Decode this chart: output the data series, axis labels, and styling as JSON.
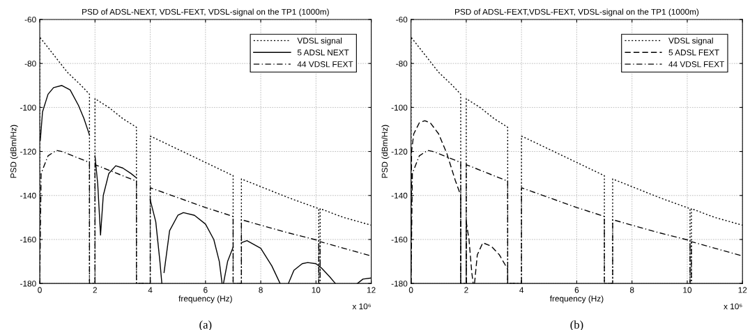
{
  "chart_data": [
    {
      "type": "line",
      "title": "PSD of ADSL-NEXT, VDSL-FEXT, VDSL-signal on the TP1 (1000m)",
      "xlabel": "frequency (Hz)",
      "ylabel": "PSD (dBm/Hz)",
      "annotations": [
        "x 10⁶",
        "(a)"
      ],
      "xlim": [
        0,
        12
      ],
      "xticks": [
        0,
        2,
        4,
        6,
        8,
        10,
        12
      ],
      "ylim": [
        -180,
        -60
      ],
      "yticks": [
        -180,
        -160,
        -140,
        -120,
        -100,
        -80,
        -60
      ],
      "grid": true,
      "legend": "top right",
      "series": [
        {
          "name": "VDSL signal",
          "color": "#000000",
          "line_style": "dotted",
          "x": [
            0,
            0,
            0.5,
            1.0,
            1.5,
            1.8,
            1.8,
            2.0,
            2.0,
            2.5,
            3.0,
            3.5,
            3.5,
            4.0,
            4.0,
            5.0,
            6.0,
            7.0,
            7.0,
            7.3,
            7.3,
            8.0,
            9.0,
            10.1,
            10.1,
            10.15,
            10.15,
            11.0,
            12.0
          ],
          "values": [
            -180,
            -68,
            -76,
            -84,
            -90,
            -94,
            -180,
            -180,
            -96,
            -100,
            -105,
            -109,
            -180,
            -180,
            -113,
            -119,
            -125,
            -131,
            -180,
            -180,
            -132.5,
            -136,
            -141,
            -146,
            -180,
            -180,
            -146,
            -150,
            -153.5
          ]
        },
        {
          "name": "5 ADSL NEXT",
          "color": "#000000",
          "line_style": "solid",
          "x": [
            0.02,
            0.1,
            0.3,
            0.5,
            0.8,
            1.1,
            1.4,
            1.6,
            1.8,
            1.9,
            2.0,
            2.1,
            2.2,
            2.3,
            2.5,
            2.75,
            3.0,
            3.3,
            3.5,
            3.75,
            4.0,
            4.2,
            4.35,
            4.42,
            4.46,
            4.5,
            4.7,
            5.0,
            5.2,
            5.6,
            6.0,
            6.3,
            6.5,
            6.6,
            6.62,
            6.65,
            6.8,
            7.0,
            7.15,
            7.3,
            7.5,
            8.0,
            8.4,
            8.7,
            8.85,
            9.0,
            9.2,
            9.5,
            9.7,
            10.0,
            10.2,
            10.5,
            10.7,
            11.1,
            11.5,
            11.7,
            12.0
          ],
          "values": [
            -115,
            -102,
            -94,
            -91,
            -90,
            -92,
            -99,
            -105,
            -112.5,
            null,
            -122,
            -135,
            -158,
            -140,
            -130,
            -126.5,
            -127.5,
            -130,
            -132,
            null,
            -142,
            -152,
            -170,
            -180,
            null,
            -175,
            -156,
            -149,
            -147.8,
            -149,
            -153,
            -160,
            -170,
            -180,
            null,
            -180,
            -170,
            -163.5,
            null,
            -161.5,
            -160.5,
            -164,
            -172,
            -180,
            null,
            -180,
            -174,
            -171,
            -170.5,
            -171,
            -173,
            -177,
            -180,
            null,
            -180,
            -178,
            -177.5
          ]
        },
        {
          "name": "44 VDSL FEXT",
          "color": "#000000",
          "line_style": "dashdot",
          "x": [
            0,
            0.05,
            0.3,
            0.6,
            0.8,
            1.2,
            1.8,
            1.8,
            2.0,
            2.0,
            3.5,
            3.5,
            4.0,
            4.0,
            5.0,
            6.0,
            7.0,
            7.0,
            7.3,
            7.3,
            8.0,
            9.0,
            10.1,
            10.1,
            10.15,
            10.15,
            11.0,
            12.0
          ],
          "values": [
            -180,
            -130,
            -122,
            -119.5,
            -120,
            -122,
            -125,
            -180,
            -180,
            -126,
            -133.5,
            -180,
            -180,
            -136.5,
            -141,
            -145.5,
            -149.5,
            -180,
            -180,
            -151,
            -153.5,
            -157,
            -160.5,
            -180,
            -180,
            -161,
            -164,
            -167.5
          ]
        }
      ]
    },
    {
      "type": "line",
      "title": "PSD of ADSL-FEXT,VDSL-FEXT, VDSL-signal on the TP1 (1000m)",
      "xlabel": "frequency (Hz)",
      "ylabel": "PSD (dBm/Hz)",
      "annotations": [
        "x 10⁶",
        "(b)"
      ],
      "xlim": [
        0,
        12
      ],
      "xticks": [
        0,
        2,
        4,
        6,
        8,
        10,
        12
      ],
      "ylim": [
        -180,
        -60
      ],
      "yticks": [
        -180,
        -160,
        -140,
        -120,
        -100,
        -80,
        -60
      ],
      "grid": true,
      "legend": "top right",
      "series": [
        {
          "name": "VDSL signal",
          "color": "#000000",
          "line_style": "dotted",
          "x": [
            0,
            0,
            0.5,
            1.0,
            1.5,
            1.8,
            1.8,
            2.0,
            2.0,
            2.5,
            3.0,
            3.5,
            3.5,
            4.0,
            4.0,
            5.0,
            6.0,
            7.0,
            7.0,
            7.3,
            7.3,
            8.0,
            9.0,
            10.1,
            10.1,
            10.15,
            10.15,
            11.0,
            12.0
          ],
          "values": [
            -180,
            -68,
            -76,
            -84,
            -90,
            -94,
            -180,
            -180,
            -96,
            -100,
            -105,
            -109,
            -180,
            -180,
            -113,
            -119,
            -125,
            -131,
            -180,
            -180,
            -132.5,
            -136,
            -141,
            -146,
            -180,
            -180,
            -146,
            -150,
            -153.5
          ]
        },
        {
          "name": "5 ADSL FEXT",
          "color": "#000000",
          "line_style": "dashed",
          "x": [
            0,
            0.02,
            0.1,
            0.3,
            0.5,
            0.7,
            1.0,
            1.3,
            1.6,
            1.8,
            1.8,
            1.9,
            2.0,
            2.0,
            2.1,
            2.2,
            2.25,
            2.27,
            2.3,
            2.4,
            2.6,
            2.9,
            3.2,
            3.5,
            3.5
          ],
          "values": [
            -180,
            -120,
            -112,
            -107,
            -106,
            -107,
            -112,
            -121,
            -133,
            -140,
            -180,
            null,
            -180,
            -152,
            -160,
            -175,
            -180,
            null,
            -180,
            -167,
            -161.5,
            -163,
            -167,
            -173.5,
            -180
          ]
        },
        {
          "name": "44 VDSL FEXT",
          "color": "#000000",
          "line_style": "dashdot",
          "x": [
            0,
            0.05,
            0.3,
            0.6,
            0.8,
            1.2,
            1.8,
            1.8,
            2.0,
            2.0,
            3.5,
            3.5,
            4.0,
            4.0,
            5.0,
            6.0,
            7.0,
            7.0,
            7.3,
            7.3,
            8.0,
            9.0,
            10.1,
            10.1,
            10.15,
            10.15,
            11.0,
            12.0
          ],
          "values": [
            -180,
            -130,
            -122,
            -119.5,
            -120,
            -122,
            -125,
            -180,
            -180,
            -126,
            -133.5,
            -180,
            -180,
            -136.5,
            -141,
            -145.5,
            -149.5,
            -180,
            -180,
            -151,
            -153.5,
            -157,
            -160.5,
            -180,
            -180,
            -161,
            -164,
            -167.5
          ]
        }
      ]
    }
  ]
}
